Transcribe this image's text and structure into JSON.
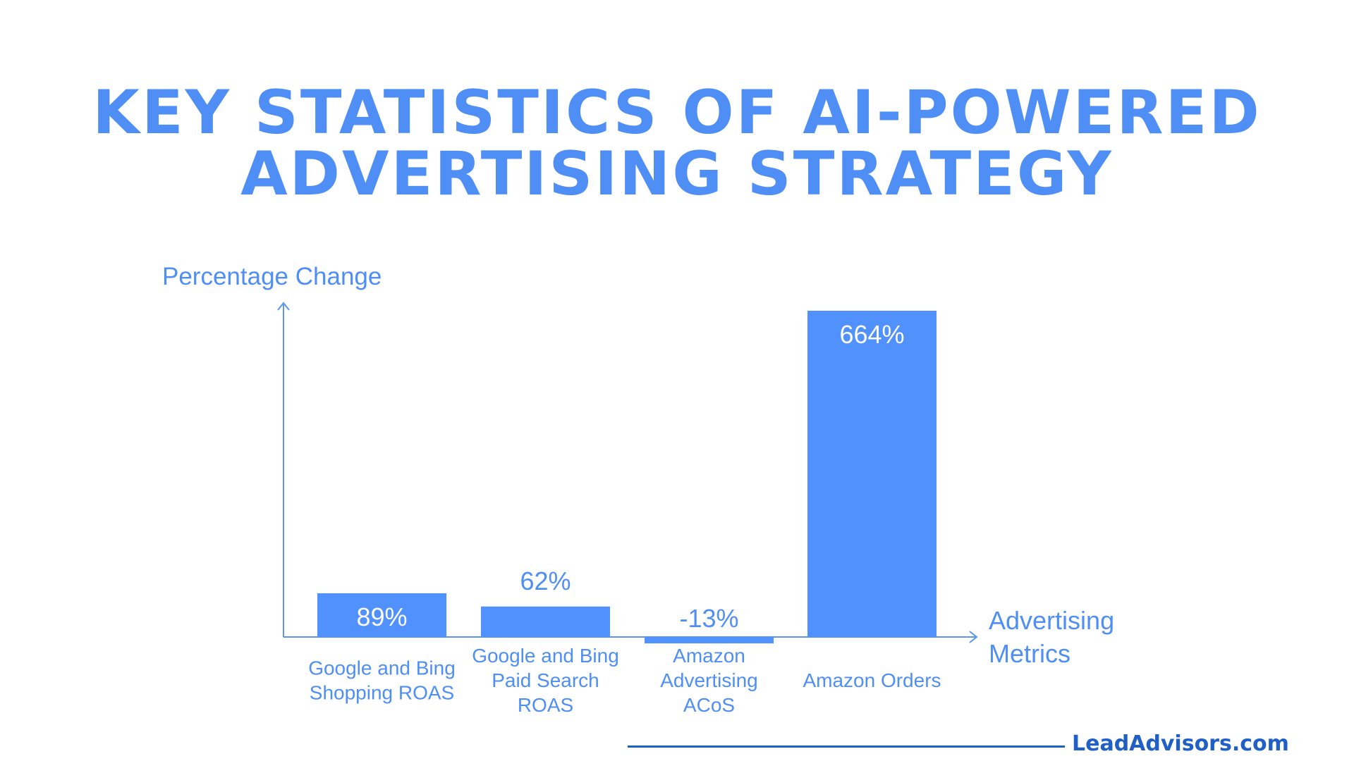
{
  "colors": {
    "title": "#4f8ff5",
    "bar": "#5091fe",
    "axis": "#5a96f2",
    "text": "#4f8ff5",
    "label_inside": "#ffffff",
    "brand": "#1f5fc6",
    "footer_line": "#1f5fc6"
  },
  "title": {
    "line1": "KEY STATISTICS OF AI-POWERED",
    "line2": "ADVERTISING STRATEGY"
  },
  "brand": {
    "text": "LeadAdvisors.com"
  },
  "chart_data": {
    "type": "bar",
    "ylabel": "Percentage Change",
    "xlabel": [
      "Advertising",
      "Metrics"
    ],
    "categories": [
      [
        "Google and Bing",
        "Shopping ROAS"
      ],
      [
        "Google and Bing",
        "Paid Search",
        "ROAS"
      ],
      [
        "Amazon",
        "Advertising",
        "ACoS"
      ],
      [
        "Amazon Orders"
      ]
    ],
    "values": [
      89,
      62,
      -13,
      664
    ],
    "value_labels": [
      "89%",
      "62%",
      "-13%",
      "664%"
    ],
    "ylim": [
      -20,
      700
    ],
    "grid": false,
    "legend": "none"
  }
}
